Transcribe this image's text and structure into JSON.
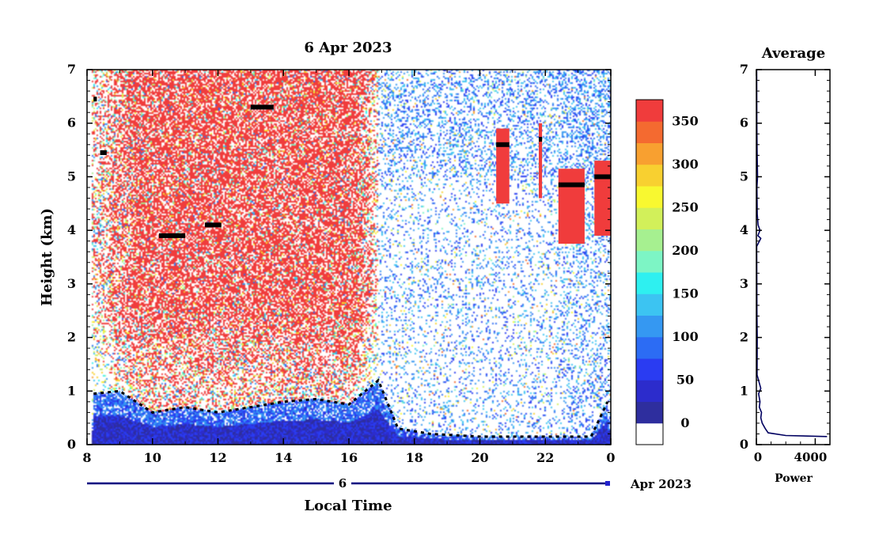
{
  "chart_data": [
    {
      "type": "heatmap",
      "title": "6 Apr 2023",
      "xlabel": "Local Time",
      "ylabel": "Height (km)",
      "x_ticks": [
        "8",
        "10",
        "12",
        "14",
        "16",
        "18",
        "20",
        "22",
        "0"
      ],
      "y_ticks": [
        "0",
        "1",
        "2",
        "3",
        "4",
        "5",
        "6",
        "7"
      ],
      "x_range": [
        8,
        24
      ],
      "y_range": [
        0,
        7
      ],
      "date_bar": {
        "day_label": "6",
        "month_label": "Apr 2023"
      },
      "colorbar": {
        "levels": [
          0,
          25,
          50,
          75,
          100,
          125,
          150,
          175,
          200,
          225,
          250,
          275,
          300,
          325,
          350,
          375
        ],
        "tick_labels": [
          "0",
          "50",
          "100",
          "150",
          "200",
          "250",
          "300",
          "350"
        ],
        "colors": [
          "#ffffff",
          "#2e2e9e",
          "#2c2ccc",
          "#2a3cf2",
          "#2c6cf4",
          "#3598f2",
          "#3cc4f2",
          "#2ef0f0",
          "#7df5c5",
          "#a6f090",
          "#d2f05a",
          "#f8f830",
          "#f8d030",
          "#f8a030",
          "#f46a30",
          "#f03c3c"
        ]
      },
      "boundary_layer_top_km": [
        [
          8.2,
          0.95
        ],
        [
          9.0,
          1.0
        ],
        [
          10.0,
          0.6
        ],
        [
          11.0,
          0.7
        ],
        [
          12.0,
          0.6
        ],
        [
          13.0,
          0.7
        ],
        [
          14.0,
          0.8
        ],
        [
          15.0,
          0.85
        ],
        [
          16.0,
          0.75
        ],
        [
          16.9,
          1.2
        ],
        [
          17.5,
          0.3
        ],
        [
          18.5,
          0.2
        ],
        [
          20.0,
          0.15
        ],
        [
          21.0,
          0.15
        ],
        [
          22.0,
          0.15
        ],
        [
          23.4,
          0.15
        ],
        [
          23.9,
          0.8
        ]
      ],
      "cloud_layers": [
        {
          "start": 8.2,
          "end": 8.3,
          "base_km": 6.45
        },
        {
          "start": 8.4,
          "end": 8.6,
          "base_km": 5.45
        },
        {
          "start": 10.2,
          "end": 11.0,
          "base_km": 3.9
        },
        {
          "start": 11.6,
          "end": 12.1,
          "base_km": 4.1
        },
        {
          "start": 13.0,
          "end": 13.7,
          "base_km": 6.3
        },
        {
          "start": 20.5,
          "end": 20.9,
          "base_km": 5.6
        },
        {
          "start": 21.8,
          "end": 21.9,
          "base_km": 5.7
        },
        {
          "start": 22.4,
          "end": 23.2,
          "base_km": 4.85
        },
        {
          "start": 23.5,
          "end": 24.0,
          "base_km": 5.0
        }
      ]
    },
    {
      "type": "line",
      "title": "Average",
      "xlabel": "Power",
      "x_ticks": [
        "0",
        "4000"
      ],
      "y_ticks": [
        "0",
        "1",
        "2",
        "3",
        "4",
        "5",
        "6",
        "7"
      ],
      "xlim": [
        0,
        5000
      ],
      "ylim": [
        0,
        7
      ],
      "series": [
        {
          "x": [
            4800,
            2000,
            800,
            600,
            400,
            300,
            350,
            200,
            250,
            150,
            300,
            50,
            60,
            40,
            30,
            20,
            300,
            100,
            250,
            120,
            60,
            40,
            80,
            50,
            30,
            20
          ],
          "y": [
            0.15,
            0.17,
            0.22,
            0.3,
            0.4,
            0.5,
            0.6,
            0.7,
            0.8,
            0.95,
            1.05,
            1.3,
            2.0,
            2.5,
            3.0,
            3.7,
            3.85,
            3.9,
            4.0,
            4.1,
            4.3,
            4.8,
            5.0,
            5.5,
            6.0,
            7.0
          ]
        }
      ]
    }
  ]
}
